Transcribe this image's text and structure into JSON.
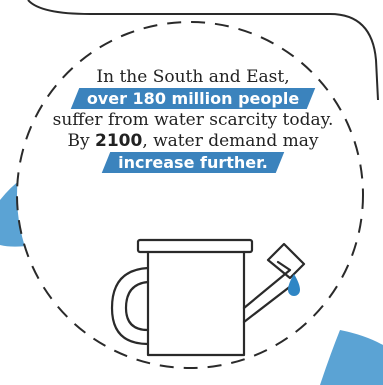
{
  "text": {
    "line1": "In the South and East,",
    "highlight1": "over 180 million people",
    "line3": "suffer from water scarcity today.",
    "line4_prefix": "By ",
    "year": "2100",
    "line4_suffix": ", water demand may",
    "highlight2": "increase further."
  },
  "colors": {
    "highlight": "#3b83bd",
    "background_blob": "#5ba3d4",
    "dark_outline": "#2a2a2a",
    "drop": "#2f86c5"
  },
  "icons": [
    "watering-can-icon",
    "water-drop-icon"
  ]
}
